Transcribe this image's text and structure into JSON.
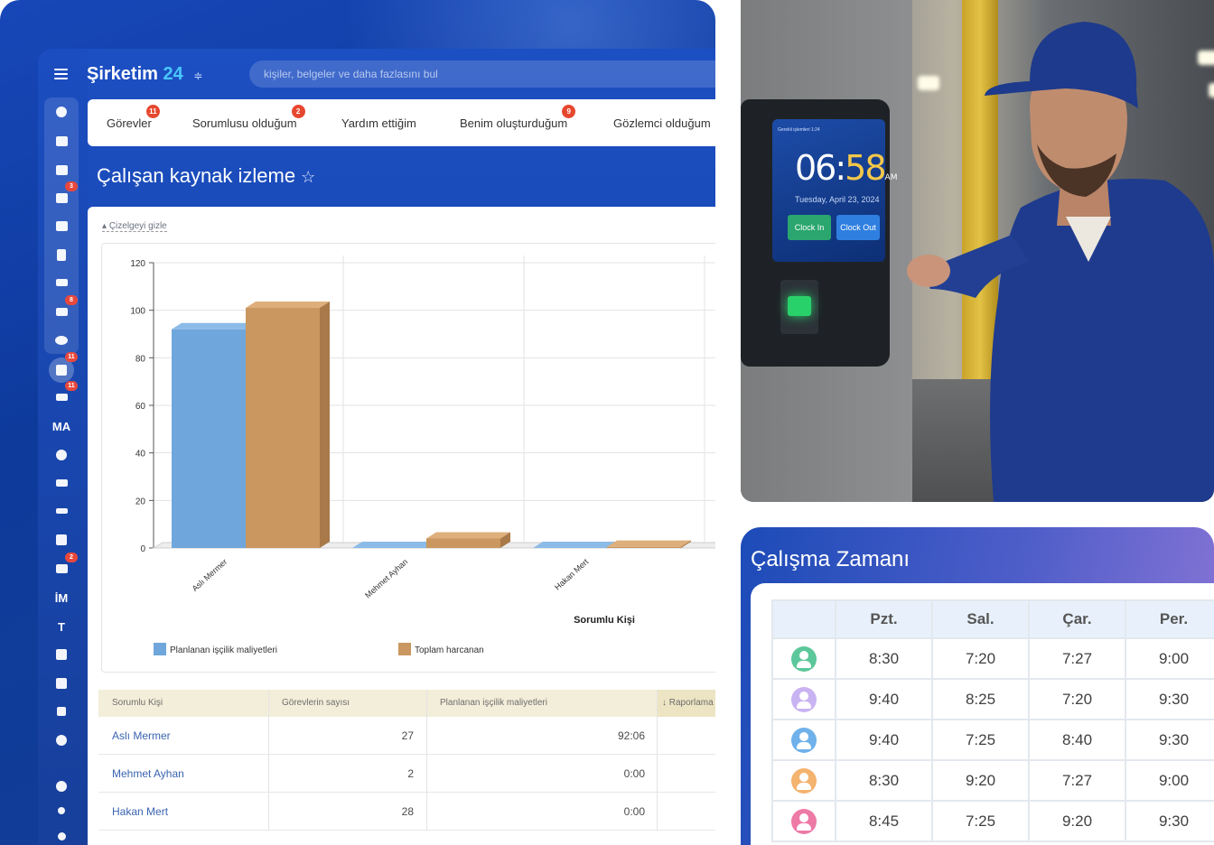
{
  "crm": {
    "brand_name": "Şirketim",
    "brand_number": "24",
    "brand_toggle_glyph": "≑",
    "search_placeholder": "kişiler, belgeler ve daha fazlasını bul",
    "sidebar": {
      "badges": [
        "3",
        "8",
        "11",
        "11",
        "2"
      ],
      "text_items": [
        "MA",
        "İM",
        "T"
      ]
    },
    "tabs": [
      {
        "label": "Görevler",
        "badge": "11"
      },
      {
        "label": "Sorumlusu olduğum",
        "badge": "2"
      },
      {
        "label": "Yardım ettiğim",
        "badge": ""
      },
      {
        "label": "Benim oluşturduğum",
        "badge": "9"
      },
      {
        "label": "Gözlemci olduğum",
        "badge": ""
      }
    ],
    "page_title": "Çalışan kaynak izleme",
    "hide_chart_link": "Çizelgeyi gizle",
    "table": {
      "headers": [
        "Sorumlu Kişi",
        "Görevlerin sayısı",
        "Planlanan işçilik maliyetleri",
        "↓ Raporlama"
      ],
      "rows": [
        {
          "name": "Aslı Mermer",
          "count": "27",
          "planned": "92:06"
        },
        {
          "name": "Mehmet Ayhan",
          "count": "2",
          "planned": "0:00"
        },
        {
          "name": "Hakan Mert",
          "count": "28",
          "planned": "0:00"
        }
      ]
    }
  },
  "chart_data": {
    "type": "bar",
    "categories": [
      "Aslı Mermer",
      "Mehmet Ayhan",
      "Hakan Mert"
    ],
    "series": [
      {
        "name": "Planlanan işçilik maliyetleri",
        "values": [
          92,
          0,
          0
        ]
      },
      {
        "name": "Toplam harcanan",
        "values": [
          101,
          4,
          0.5
        ]
      }
    ],
    "title": "",
    "xlabel": "Sorumlu Kişi",
    "ylabel": "",
    "ylim": [
      0,
      120
    ],
    "yticks": [
      0,
      20,
      40,
      60,
      80,
      100,
      120
    ],
    "grid": true,
    "legend_position": "bottom",
    "colors": [
      "#6fa6dc",
      "#c9975f"
    ]
  },
  "photo": {
    "device_header": "Gerekli işlemleri  1:24",
    "clock_hours": "06",
    "clock_sep": ":",
    "clock_minutes": "58",
    "clock_ampm": "AM",
    "clock_date": "Tuesday, April 23, 2024",
    "clock_in_label": "Clock In",
    "clock_out_label": "Clock Out"
  },
  "timesheet": {
    "title": "Çalışma Zamanı",
    "days": [
      "Pzt.",
      "Sal.",
      "Çar.",
      "Per."
    ],
    "avatar_colors": [
      "#5cc79a",
      "#c9b3f2",
      "#6fb1ea",
      "#f4b36e",
      "#ee7aa6"
    ],
    "rows": [
      [
        "8:30",
        "7:20",
        "7:27",
        "9:00"
      ],
      [
        "9:40",
        "8:25",
        "7:20",
        "9:30"
      ],
      [
        "9:40",
        "7:25",
        "8:40",
        "9:30"
      ],
      [
        "8:30",
        "9:20",
        "7:27",
        "9:00"
      ],
      [
        "8:45",
        "7:25",
        "9:20",
        "9:30"
      ]
    ]
  }
}
